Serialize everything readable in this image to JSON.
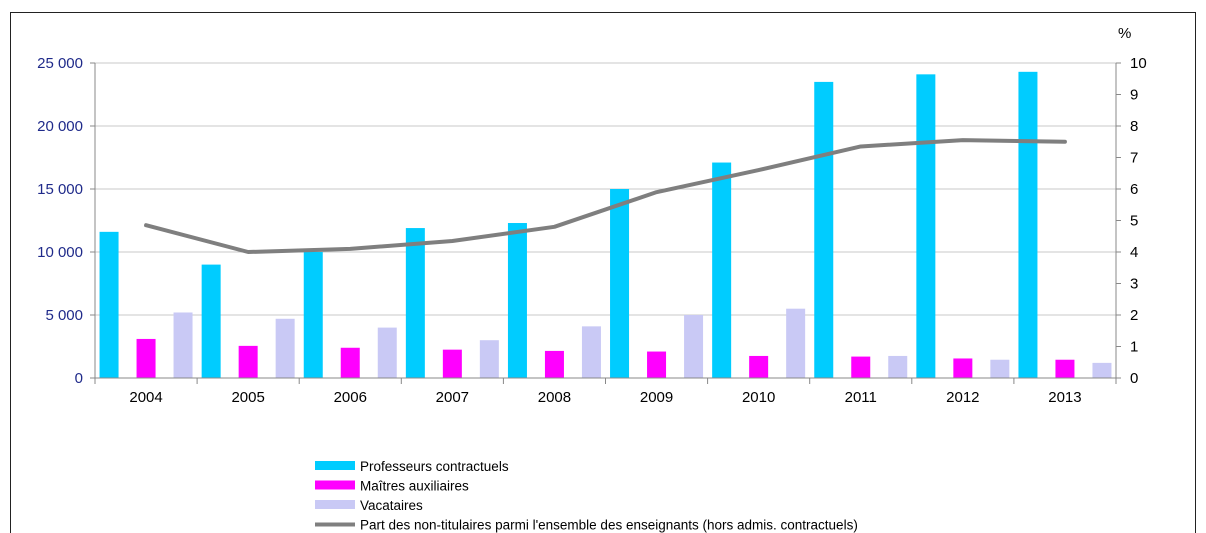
{
  "chart_data": {
    "type": "bar",
    "categories": [
      "2004",
      "2005",
      "2006",
      "2007",
      "2008",
      "2009",
      "2010",
      "2011",
      "2012",
      "2013"
    ],
    "series": [
      {
        "name": "Professeurs contractuels",
        "type": "bar",
        "axis": "left",
        "color": "#00ccff",
        "values": [
          11600,
          9000,
          10000,
          11900,
          12300,
          15000,
          17100,
          23500,
          24100,
          24300
        ]
      },
      {
        "name": "Maîtres auxiliaires",
        "type": "bar",
        "axis": "left",
        "color": "#ff00ff",
        "values": [
          3100,
          2550,
          2400,
          2250,
          2150,
          2100,
          1750,
          1700,
          1550,
          1450
        ]
      },
      {
        "name": "Vacataires",
        "type": "bar",
        "axis": "left",
        "color": "#c9c9f5",
        "values": [
          5200,
          4700,
          4000,
          3000,
          4100,
          5000,
          5500,
          1750,
          1450,
          1200
        ]
      },
      {
        "name": "Part des non-titulaires parmi l'ensemble des enseignants (hors admis. contractuels)",
        "type": "line",
        "axis": "right",
        "color": "#7f7f7f",
        "values": [
          4.85,
          4.0,
          4.1,
          4.35,
          4.8,
          5.9,
          6.6,
          7.35,
          7.55,
          7.5
        ]
      }
    ],
    "y_left": {
      "ylim": [
        0,
        25000
      ],
      "ticks": [
        "0",
        "5 000",
        "10 000",
        "15 000",
        "20 000",
        "25 000"
      ]
    },
    "y_right": {
      "ylim": [
        0,
        10
      ],
      "ticks": [
        "0",
        "1",
        "2",
        "3",
        "4",
        "5",
        "6",
        "7",
        "8",
        "9",
        "10"
      ],
      "unit_label": "%"
    },
    "grid": true,
    "legend_position": "bottom"
  }
}
